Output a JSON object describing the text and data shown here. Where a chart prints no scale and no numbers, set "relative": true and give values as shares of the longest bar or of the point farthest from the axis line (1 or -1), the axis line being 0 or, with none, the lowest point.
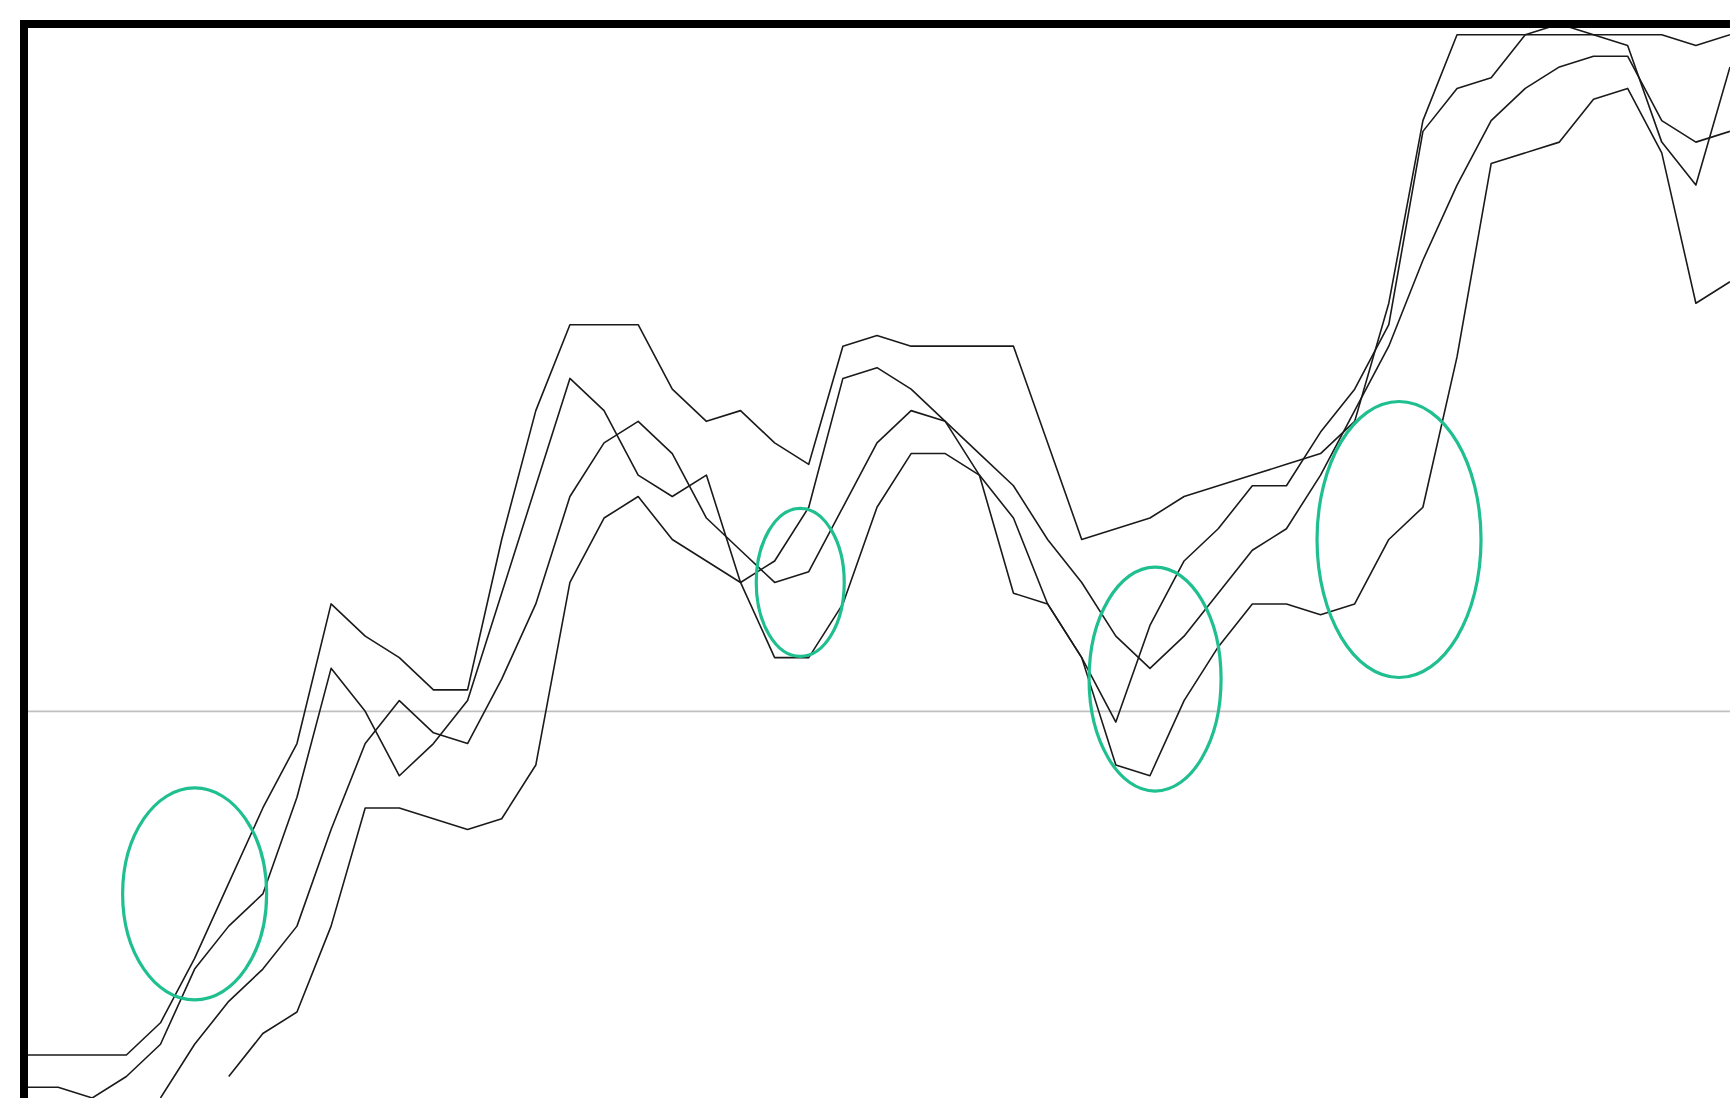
{
  "chart_data": {
    "type": "line",
    "relative": true,
    "categories": [
      null,
      null,
      null,
      null,
      null,
      null,
      null,
      null,
      null,
      null,
      null,
      null,
      null,
      null,
      null,
      null,
      null,
      null,
      null,
      null,
      null,
      null,
      null,
      null,
      null,
      null,
      null,
      null,
      null,
      null,
      null,
      null,
      null,
      null,
      null,
      null,
      null,
      null,
      null,
      null,
      null,
      null,
      null,
      null,
      null,
      null,
      null,
      null,
      null,
      null,
      null
    ],
    "series": [
      {
        "color": "#1a1a1a",
        "values": [
          0.01,
          0.01,
          0.0,
          0.02,
          0.05,
          0.12,
          0.16,
          0.19,
          0.28,
          0.4,
          0.36,
          0.3,
          0.33,
          0.37,
          0.47,
          0.57,
          0.67,
          0.64,
          0.58,
          0.56,
          0.58,
          0.48,
          0.5,
          0.55,
          0.67,
          0.68,
          0.66,
          0.63,
          0.58,
          0.47,
          0.46,
          0.41,
          0.35,
          0.44,
          0.5,
          0.53,
          0.57,
          0.57,
          0.62,
          0.66,
          0.72,
          0.9,
          0.94,
          0.95,
          0.99,
          1.0,
          0.99,
          0.98,
          0.89,
          0.85,
          0.96
        ]
      },
      {
        "color": "#1a1a1a",
        "values": [
          0.04,
          0.04,
          0.04,
          0.04,
          0.07,
          0.13,
          0.2,
          0.27,
          0.33,
          0.46,
          0.43,
          0.41,
          0.38,
          0.38,
          0.52,
          0.64,
          0.72,
          0.72,
          0.72,
          0.66,
          0.63,
          0.64,
          0.61,
          0.59,
          0.7,
          0.71,
          0.7,
          0.7,
          0.7,
          0.7,
          0.61,
          0.52,
          0.53,
          0.54,
          0.56,
          0.57,
          0.58,
          0.59,
          0.6,
          0.63,
          0.74,
          0.91,
          0.99,
          0.99,
          0.99,
          0.99,
          0.99,
          0.99,
          0.99,
          0.98,
          0.99
        ]
      },
      {
        "color": "#1a1a1a",
        "values": [
          null,
          null,
          null,
          null,
          0.0,
          0.05,
          0.09,
          0.12,
          0.16,
          0.25,
          0.33,
          0.37,
          0.34,
          0.33,
          0.39,
          0.46,
          0.56,
          0.61,
          0.63,
          0.6,
          0.54,
          0.51,
          0.48,
          0.49,
          0.55,
          0.61,
          0.64,
          0.63,
          0.6,
          0.57,
          0.52,
          0.48,
          0.43,
          0.4,
          0.43,
          0.47,
          0.51,
          0.53,
          0.58,
          0.64,
          0.7,
          0.78,
          0.85,
          0.91,
          0.94,
          0.96,
          0.97,
          0.97,
          0.91,
          0.89,
          0.9
        ]
      },
      {
        "color": "#1a1a1a",
        "values": [
          null,
          null,
          null,
          null,
          null,
          null,
          0.02,
          0.06,
          0.08,
          0.16,
          0.27,
          0.27,
          0.26,
          0.25,
          0.26,
          0.31,
          0.48,
          0.54,
          0.56,
          0.52,
          0.5,
          0.48,
          0.41,
          0.41,
          0.46,
          0.55,
          0.6,
          0.6,
          0.58,
          0.54,
          0.46,
          0.41,
          0.31,
          0.3,
          0.37,
          0.42,
          0.46,
          0.46,
          0.45,
          0.46,
          0.52,
          0.55,
          0.69,
          0.87,
          0.88,
          0.89,
          0.93,
          0.94,
          0.88,
          0.74,
          0.76
        ]
      }
    ],
    "ref_lines": [
      {
        "axis": "y",
        "value": 0.36,
        "color": "#c0c0c0"
      }
    ]
  }
}
